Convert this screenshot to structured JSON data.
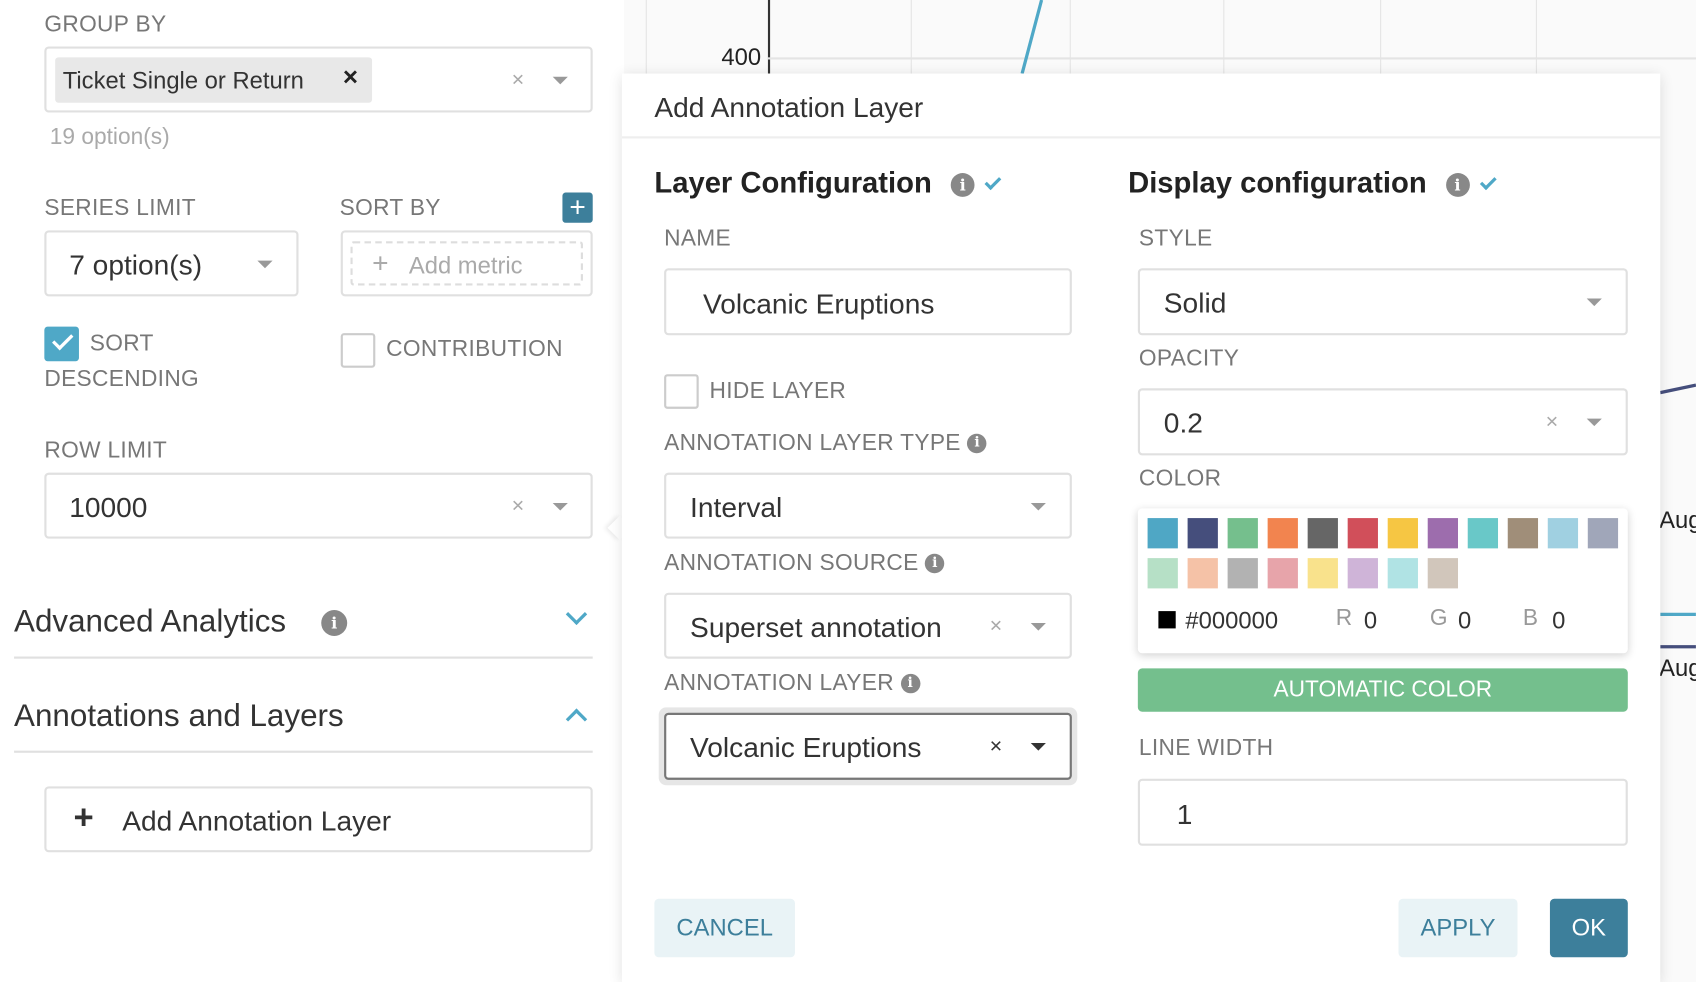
{
  "sidebar": {
    "group_by": {
      "label": "GROUP BY",
      "tag": "Ticket Single or Return",
      "options_count": "19 option(s)"
    },
    "series_limit": {
      "label": "SERIES LIMIT",
      "value": "7 option(s)"
    },
    "sort_by": {
      "label": "SORT BY",
      "placeholder": "Add metric"
    },
    "sort_descending": {
      "label_line1": "SORT",
      "label_line2": "DESCENDING",
      "checked": true
    },
    "contribution": {
      "label": "CONTRIBUTION",
      "checked": false
    },
    "row_limit": {
      "label": "ROW LIMIT",
      "value": "10000"
    },
    "sections": [
      {
        "title": "Advanced Analytics",
        "expanded": false
      },
      {
        "title": "Annotations and Layers",
        "expanded": true
      }
    ],
    "add_annotation_label": "Add Annotation Layer"
  },
  "chart": {
    "y_tick": "400",
    "x_ticks": [
      "Aug",
      "Aug"
    ],
    "colors": {
      "series1": "#4fa8c7",
      "series2": "#454e7c"
    }
  },
  "modal": {
    "title": "Add Annotation Layer",
    "layer_config": {
      "heading": "Layer Configuration",
      "name_label": "NAME",
      "name_value": "Volcanic Eruptions",
      "hide_layer_label": "HIDE LAYER",
      "hide_layer_checked": false,
      "type_label": "ANNOTATION LAYER TYPE",
      "type_value": "Interval",
      "source_label": "ANNOTATION SOURCE",
      "source_value": "Superset annotation",
      "layer_label": "ANNOTATION LAYER",
      "layer_value": "Volcanic Eruptions"
    },
    "display_config": {
      "heading": "Display configuration",
      "style_label": "STYLE",
      "style_value": "Solid",
      "opacity_label": "OPACITY",
      "opacity_value": "0.2",
      "color_label": "COLOR",
      "swatches": [
        "#4fa7c5",
        "#454e7c",
        "#75bf8d",
        "#f2844f",
        "#666666",
        "#d14f5a",
        "#f6c643",
        "#9d6dad",
        "#69c8c8",
        "#a08e79",
        "#a0d0e1",
        "#a0a6b9",
        "#b6e0c6",
        "#f5c2a7",
        "#b2b2b2",
        "#e7a4aa",
        "#f9e28c",
        "#cfb4d8",
        "#b0e3e4",
        "#d1c6bb"
      ],
      "hex": "#000000",
      "r_label": "R",
      "r": "0",
      "g_label": "G",
      "g": "0",
      "b_label": "B",
      "b": "0",
      "automatic_color": "AUTOMATIC COLOR",
      "line_width_label": "LINE WIDTH",
      "line_width_value": "1"
    },
    "cancel": "CANCEL",
    "apply": "APPLY",
    "ok": "OK",
    "colors": {
      "primary": "#3d7f9b",
      "auto": "#74bf8d"
    }
  }
}
